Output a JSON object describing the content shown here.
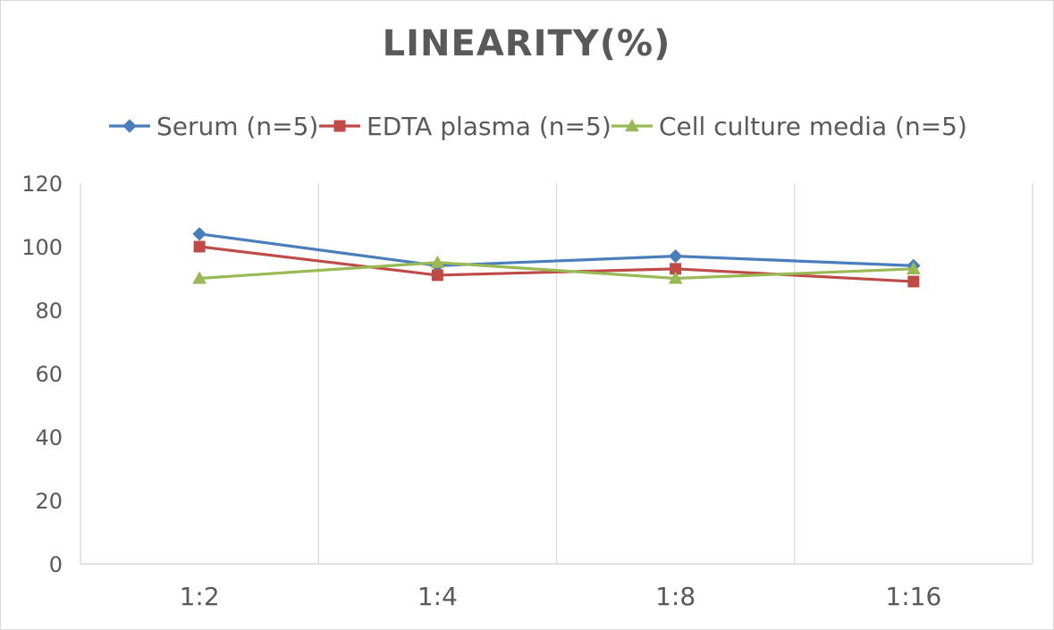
{
  "chart_data": {
    "type": "line",
    "title": "LINEARITY(%)",
    "categories": [
      "1:2",
      "1:4",
      "1:8",
      "1:16"
    ],
    "series": [
      {
        "name": "Serum (n=5)",
        "values": [
          104,
          94,
          97,
          94
        ],
        "color": "#4a7ebb",
        "marker": "diamond"
      },
      {
        "name": "EDTA plasma (n=5)",
        "values": [
          100,
          91,
          93,
          89
        ],
        "color": "#be4b48",
        "marker": "square"
      },
      {
        "name": "Cell culture media (n=5)",
        "values": [
          90,
          95,
          90,
          93
        ],
        "color": "#98b954",
        "marker": "triangle"
      }
    ],
    "ylim": [
      0,
      120
    ],
    "yticks": [
      0,
      20,
      40,
      60,
      80,
      100,
      120
    ],
    "grid": true,
    "legend_position": "top"
  }
}
